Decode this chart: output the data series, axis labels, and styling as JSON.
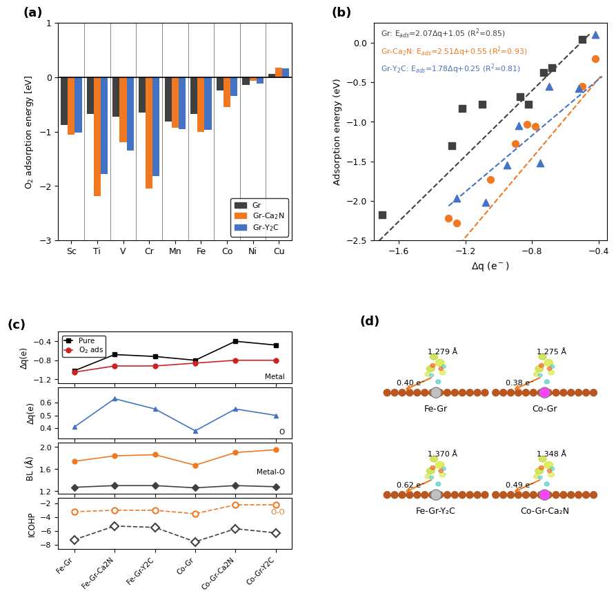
{
  "panel_a": {
    "categories": [
      "Sc",
      "Ti",
      "V",
      "Cr",
      "Mn",
      "Fe",
      "Co",
      "Ni",
      "Cu"
    ],
    "Gr": [
      -0.88,
      -0.68,
      -0.73,
      -0.65,
      -0.82,
      -0.67,
      -0.24,
      -0.14,
      0.06
    ],
    "GrCa2N": [
      -1.05,
      -2.18,
      -1.2,
      -2.05,
      -0.93,
      -1.0,
      -0.55,
      -0.07,
      0.18
    ],
    "GrY2C": [
      -1.02,
      -1.78,
      -1.35,
      -1.82,
      -0.95,
      -0.97,
      -0.35,
      -0.12,
      0.16
    ],
    "colors": [
      "#404040",
      "#f07820",
      "#4472c4"
    ],
    "ylim": [
      -3,
      1
    ],
    "yticks": [
      -3,
      -2,
      -1,
      0,
      1
    ]
  },
  "panel_b": {
    "Gr_x": [
      -1.7,
      -1.28,
      -1.22,
      -1.1,
      -0.87,
      -0.82,
      -0.73,
      -0.68,
      -0.5
    ],
    "Gr_y": [
      -2.18,
      -1.3,
      -0.83,
      -0.78,
      -0.68,
      -0.78,
      -0.38,
      -0.32,
      0.04
    ],
    "GrCa2N_x": [
      -1.3,
      -1.25,
      -1.05,
      -0.9,
      -0.83,
      -0.78,
      -0.5,
      -0.42
    ],
    "GrCa2N_y": [
      -2.22,
      -2.28,
      -1.73,
      -1.28,
      -1.03,
      -1.06,
      -0.55,
      -0.2
    ],
    "GrY2C_x": [
      -1.25,
      -1.08,
      -0.95,
      -0.88,
      -0.75,
      -0.7,
      -0.52,
      -0.42
    ],
    "GrY2C_y": [
      -1.97,
      -2.02,
      -1.55,
      -1.05,
      -1.52,
      -0.55,
      -0.58,
      0.1
    ],
    "Gr_m": 2.07,
    "Gr_b": 1.05,
    "GrCa2N_m": 2.51,
    "GrCa2N_b": 0.55,
    "GrY2C_m": 1.78,
    "GrY2C_b": 0.25,
    "xlim": [
      -1.75,
      -0.35
    ],
    "ylim": [
      -2.5,
      0.25
    ],
    "xticks": [
      -1.6,
      -1.2,
      -0.8,
      -0.4
    ]
  },
  "panel_c": {
    "x_labels": [
      "Fe-Gr",
      "Fe-Gr-Ca2N",
      "Fe-Gr-Y2C",
      "Co-Gr",
      "Co-Gr-Ca2N",
      "Co-Gr-Y2C"
    ],
    "metal_pure": [
      -1.02,
      -0.68,
      -0.72,
      -0.8,
      -0.4,
      -0.48
    ],
    "metal_O2ads": [
      -1.05,
      -0.92,
      -0.92,
      -0.86,
      -0.8,
      -0.8
    ],
    "O_charge": [
      0.41,
      0.63,
      0.55,
      0.38,
      0.55,
      0.5
    ],
    "BL_metal_O": [
      1.27,
      1.3,
      1.3,
      1.26,
      1.3,
      1.28
    ],
    "BL_O_O": [
      1.74,
      1.84,
      1.86,
      1.67,
      1.9,
      1.95
    ],
    "ICOHP_metal_O": [
      -7.3,
      -5.3,
      -5.5,
      -7.6,
      -5.7,
      -6.3
    ],
    "ICOHP_O_O": [
      -3.2,
      -3.0,
      -3.0,
      -3.5,
      -2.2,
      -2.2
    ]
  },
  "panel_d": {
    "labels": [
      "Fe-Gr",
      "Co-Gr",
      "Fe-Gr-Y₂C",
      "Co-Gr-Ca₂N"
    ],
    "bond_lengths": [
      "1.279 Å",
      "1.275 Å",
      "1.370 Å",
      "1.348 Å"
    ],
    "charges": [
      "0.40 e⁻",
      "0.38 e⁻",
      "0.62 e⁻",
      "0.49 e⁻"
    ],
    "special_colors": [
      "#a0a0a0",
      "#ff00ff",
      "#a0a0a0",
      "#ff00ff"
    ]
  },
  "colors": {
    "Gr": "#404040",
    "GrCa2N": "#f07820",
    "GrY2C": "#4472c4",
    "red": "#cc2222",
    "blue": "#2244cc"
  }
}
